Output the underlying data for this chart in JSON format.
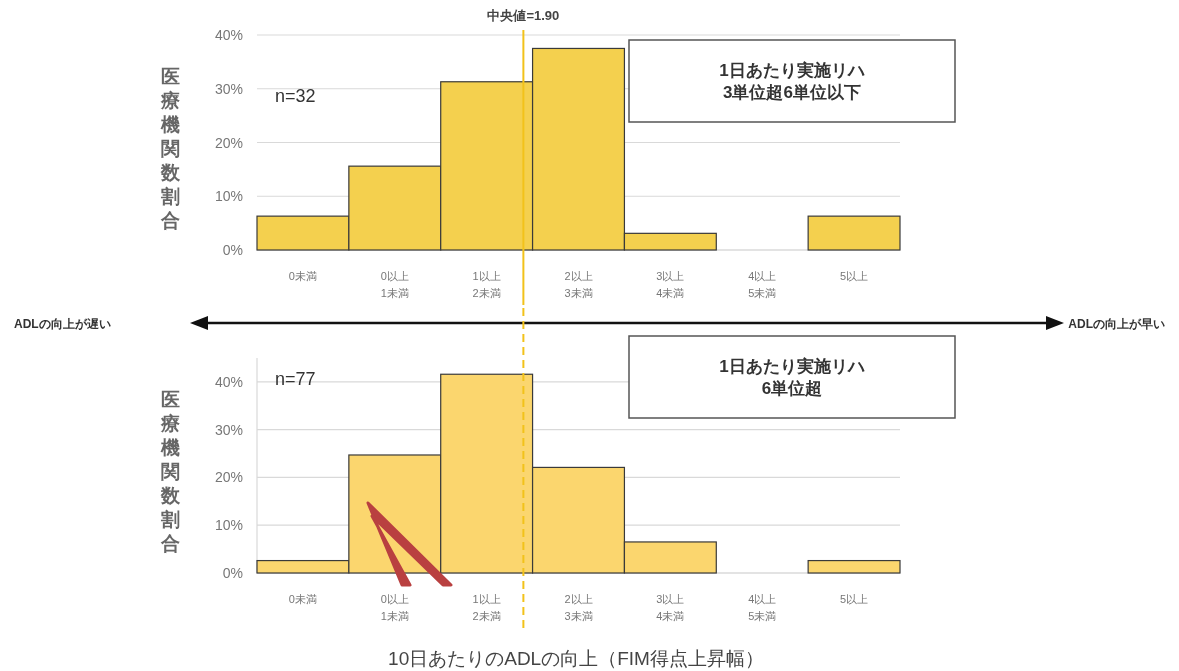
{
  "chart_data": [
    {
      "type": "bar",
      "x": [
        -0.5,
        0.5,
        1.5,
        2.5,
        3.5,
        4.5,
        5.5
      ],
      "xlim": [
        -1,
        6
      ],
      "xticks": [
        {
          "value": -0.5,
          "label": "0未満"
        },
        {
          "value": 0.5,
          "label": "0以上\n1未満"
        },
        {
          "value": 1.5,
          "label": "1以上\n2未満"
        },
        {
          "value": 2.5,
          "label": "2以上\n3未満"
        },
        {
          "value": 3.5,
          "label": "3以上\n4未満"
        },
        {
          "value": 4.5,
          "label": "4以上\n5未満"
        },
        {
          "value": 5.5,
          "label": "5以上"
        }
      ],
      "values": [
        6.3,
        15.6,
        31.3,
        37.5,
        3.1,
        0,
        6.3
      ],
      "color": "#f4d04e",
      "ylabel": "医療機関数割合",
      "ylim": [
        0,
        40
      ],
      "yticks": [
        {
          "value": 0,
          "label": "0%"
        },
        {
          "value": 10,
          "label": "10%"
        },
        {
          "value": 20,
          "label": "20%"
        },
        {
          "value": 30,
          "label": "30%"
        },
        {
          "value": 40,
          "label": "40%"
        }
      ],
      "grid": "y",
      "ref_lines": [
        {
          "axis": "x",
          "value": 1.9,
          "label": "中央値=1.90",
          "color": "#f2c21a",
          "line_style": "solid"
        }
      ],
      "annotations": [
        "n=32",
        "1日あたり実施リハ\n3単位超6単位以下",
        "ADLの向上が遅い",
        "ADLの向上が早い"
      ]
    },
    {
      "type": "bar",
      "x": [
        -0.5,
        0.5,
        1.5,
        2.5,
        3.5,
        4.5,
        5.5
      ],
      "xlim": [
        -1,
        6
      ],
      "xticks": [
        {
          "value": -0.5,
          "label": "0未満"
        },
        {
          "value": 0.5,
          "label": "0以上\n1未満"
        },
        {
          "value": 1.5,
          "label": "1以上\n2未満"
        },
        {
          "value": 2.5,
          "label": "2以上\n3未満"
        },
        {
          "value": 3.5,
          "label": "3以上\n4未満"
        },
        {
          "value": 4.5,
          "label": "4以上\n5未満"
        },
        {
          "value": 5.5,
          "label": "5以上"
        }
      ],
      "values": [
        2.6,
        24.7,
        41.6,
        22.1,
        6.5,
        0,
        2.6
      ],
      "color": "#fbd66e",
      "ylabel": "医療機関数割合",
      "xlabel": "10日あたりのADLの向上（FIM得点上昇幅）",
      "ylim": [
        0,
        45
      ],
      "yticks": [
        {
          "value": 0,
          "label": "0%"
        },
        {
          "value": 10,
          "label": "10%"
        },
        {
          "value": 20,
          "label": "20%"
        },
        {
          "value": 30,
          "label": "30%"
        },
        {
          "value": 40,
          "label": "40%"
        }
      ],
      "grid": "y",
      "ref_lines": [
        {
          "axis": "x",
          "value": 1.9,
          "color": "#f2c21a",
          "line_style": "dashed"
        }
      ],
      "annotations": [
        "n=77",
        "1日あたり実施リハ\n6単位超"
      ]
    }
  ]
}
